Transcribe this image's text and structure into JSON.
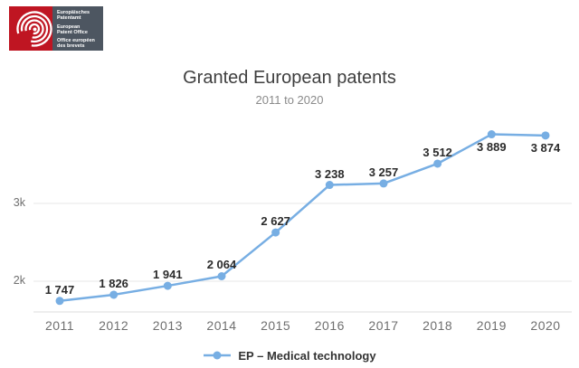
{
  "logo": {
    "name": "European Patent Office logo",
    "blocks": [
      [
        "Europäisches",
        "Patentamt"
      ],
      [
        "European",
        "Patent Office"
      ],
      [
        "Office européen",
        "des brevets"
      ]
    ],
    "red": "#bf1522",
    "panel_gray": "#4d5661"
  },
  "chart_data": {
    "type": "line",
    "title": "Granted European patents",
    "subtitle": "2011 to 2020",
    "categories": [
      "2011",
      "2012",
      "2013",
      "2014",
      "2015",
      "2016",
      "2017",
      "2018",
      "2019",
      "2020"
    ],
    "series": [
      {
        "name": "EP – Medical technology",
        "color": "#77aee3",
        "values": [
          1747,
          1826,
          1941,
          2064,
          2627,
          3238,
          3257,
          3512,
          3889,
          3874
        ]
      }
    ],
    "y_axis": {
      "ticks": [
        {
          "label": "2k",
          "value": 2000
        },
        {
          "label": "3k",
          "value": 3000
        }
      ]
    },
    "data_label_position": [
      "above",
      "above",
      "above",
      "above",
      "above",
      "above",
      "above",
      "above",
      "below",
      "below"
    ],
    "value_format": "thousands separated by space",
    "grid": "horizontal",
    "legend_position": "bottom",
    "colors": {
      "grid": "#e7e7e7",
      "axis_line": "#dedede",
      "data_label": "#2b2b2b",
      "axis_text": "#6f6f6f",
      "title": "#3f3f3f",
      "subtitle": "#8a8a8a",
      "legend_text": "#333333"
    }
  }
}
